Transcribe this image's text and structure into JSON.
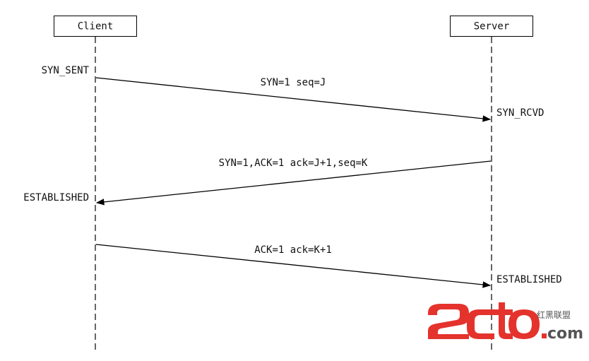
{
  "participants": {
    "client": "Client",
    "server": "Server"
  },
  "states": {
    "client_syn_sent": "SYN_SENT",
    "server_syn_rcvd": "SYN_RCVD",
    "client_established": "ESTABLISHED",
    "server_established": "ESTABLISHED"
  },
  "messages": [
    {
      "label": "SYN=1 seq=J",
      "from": "client",
      "to": "server"
    },
    {
      "label": "SYN=1,ACK=1 ack=J+1,seq=K",
      "from": "server",
      "to": "client"
    },
    {
      "label": "ACK=1 ack=K+1",
      "from": "client",
      "to": "server"
    }
  ],
  "watermark": {
    "brand": "2cto",
    "domain": ".com",
    "chinese": "红黑联盟",
    "colors": {
      "red": "#e4332c",
      "gray": "#555555"
    }
  }
}
